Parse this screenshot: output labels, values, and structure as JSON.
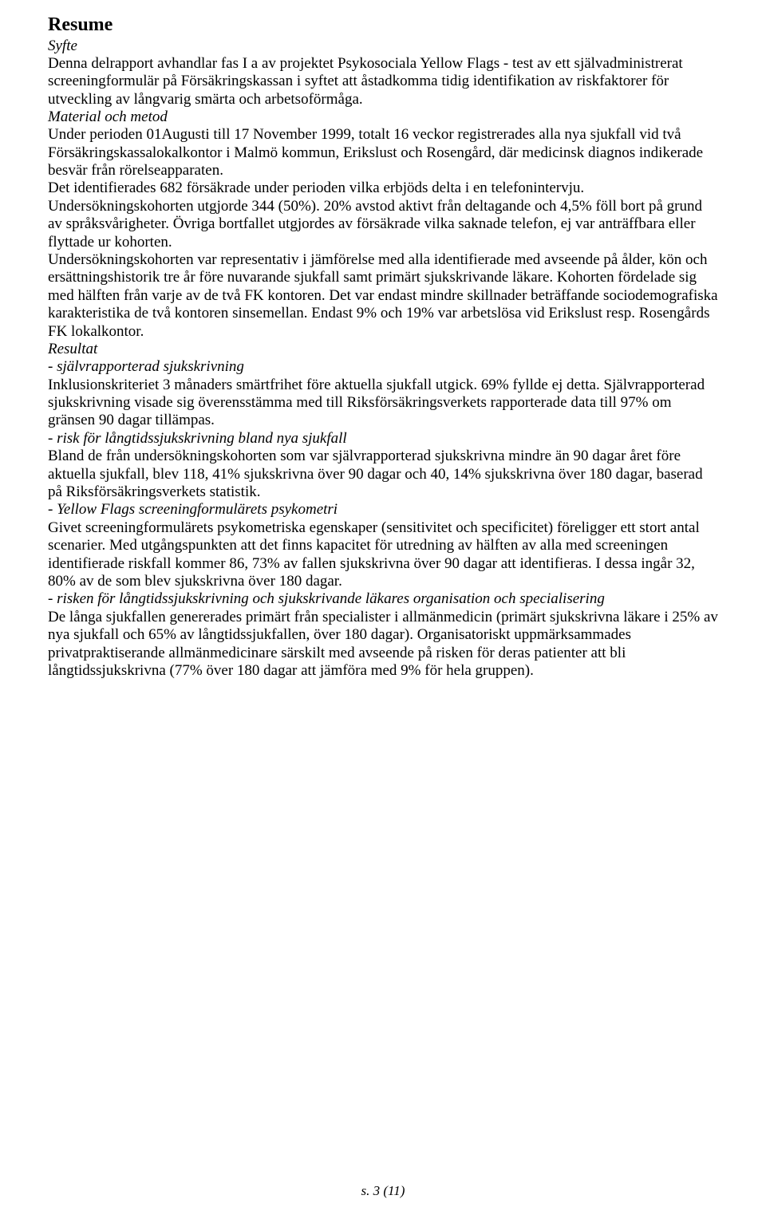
{
  "title": "Resume",
  "sections": {
    "syfte": {
      "head": "Syfte",
      "text": "Denna delrapport avhandlar fas I a av projektet Psykosociala Yellow Flags - test av ett självadministrerat screeningformulär på Försäkringskassan i syftet att åstadkomma tidig identifikation av riskfaktorer för utveckling av långvarig smärta och arbetsoförmåga."
    },
    "material": {
      "head": "Material och metod",
      "text": "Under perioden 01Augusti till 17 November 1999, totalt 16 veckor registrerades alla nya sjukfall vid två Försäkringskassalokalkontor i Malmö kommun, Erikslust och Rosengård, där medicinsk diagnos indikerade besvär från rörelseapparaten.\nDet identifierades 682 försäkrade under perioden vilka erbjöds delta i en telefonintervju. Undersökningskohorten utgjorde 344 (50%). 20% avstod aktivt från deltagande och 4,5% föll bort på grund av språksvårigheter. Övriga bortfallet utgjordes av försäkrade vilka saknade telefon, ej var anträffbara eller flyttade ur kohorten.\nUndersökningskohorten var representativ i jämförelse med alla identifierade med avseende på ålder, kön och ersättningshistorik tre år före nuvarande sjukfall samt primärt sjukskrivande läkare. Kohorten fördelade sig med hälften från varje av de två FK kontoren. Det var endast mindre skillnader beträffande sociodemografiska karakteristika de två kontoren sinsemellan. Endast 9% och 19% var arbetslösa vid Erikslust resp. Rosengårds FK lokalkontor."
    },
    "resultat": {
      "head": "Resultat",
      "sub1_head": "- självrapporterad sjukskrivning",
      "sub1_text": "Inklusionskriteriet 3 månaders smärtfrihet före aktuella sjukfall utgick. 69% fyllde ej detta. Självrapporterad sjukskrivning visade sig överensstämma med till Riksförsäkringsverkets rapporterade data till 97% om gränsen 90 dagar tillämpas.",
      "sub2_head": "- risk för långtidssjukskrivning bland nya sjukfall",
      "sub2_text": "Bland de från undersökningskohorten som var självrapporterad sjukskrivna mindre än 90 dagar året före aktuella sjukfall, blev 118, 41% sjukskrivna över 90 dagar och 40, 14% sjukskrivna över 180 dagar, baserad på Riksförsäkringsverkets statistik.",
      "sub3_head": "- Yellow Flags screeningformulärets psykometri",
      "sub3_text": "Givet screeningformulärets psykometriska egenskaper (sensitivitet och specificitet) föreligger ett stort antal scenarier. Med utgångspunkten att det finns kapacitet för utredning av hälften av alla med screeningen identifierade riskfall kommer 86, 73% av fallen sjukskrivna över 90 dagar att identifieras. I dessa ingår 32, 80% av de som blev sjukskrivna över 180 dagar.",
      "sub4_head": "- risken för långtidssjukskrivning och sjukskrivande läkares organisation och specialisering",
      "sub4_text": "De långa sjukfallen genererades primärt från specialister i allmänmedicin (primärt sjukskrivna läkare i 25% av nya sjukfall och 65% av långtidssjukfallen, över 180 dagar). Organisatoriskt uppmärksammades privatpraktiserande allmänmedicinare särskilt med avseende på risken för deras patienter att bli långtidssjukskrivna (77% över 180 dagar att jämföra med 9% för hela gruppen)."
    }
  },
  "footer": "s. 3 (11)"
}
